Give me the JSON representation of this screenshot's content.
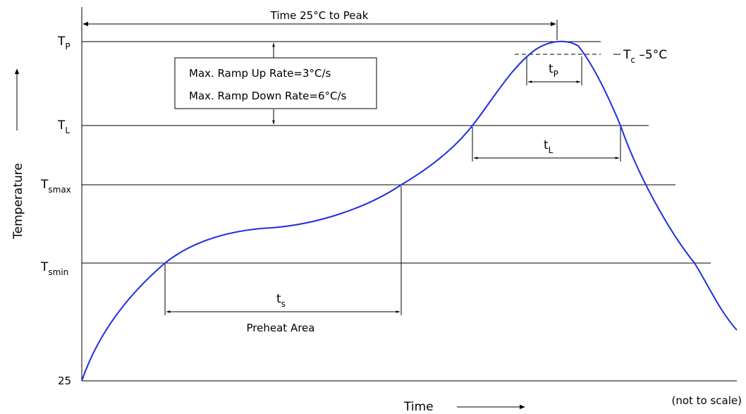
{
  "top_span_label": "Time 25°C to Peak",
  "box_lines": [
    "Max. Ramp Up Rate=3°C/s",
    "Max. Ramp Down Rate=6°C/s"
  ],
  "y_axis_label": "Temperature",
  "x_axis_label": "Time",
  "note": "(not to scale)",
  "origin_label": "25",
  "levels": {
    "tp": {
      "main": "T",
      "sub": "P"
    },
    "tl": {
      "main": "T",
      "sub": "L"
    },
    "tsmax": {
      "main": "T",
      "sub": "smax"
    },
    "tsmin": {
      "main": "T",
      "sub": "smin"
    }
  },
  "tc": {
    "main": "T",
    "sub": "c",
    "suffix": " –5°C"
  },
  "interval_labels": {
    "tp": {
      "main": "t",
      "sub": "P"
    },
    "tl": {
      "main": "t",
      "sub": "L"
    },
    "ts": {
      "main": "t",
      "sub": "s"
    }
  },
  "preheat_label": "Preheat Area",
  "colors": {
    "profile_curve": "#1f2ee0",
    "lines": "#000000"
  }
}
